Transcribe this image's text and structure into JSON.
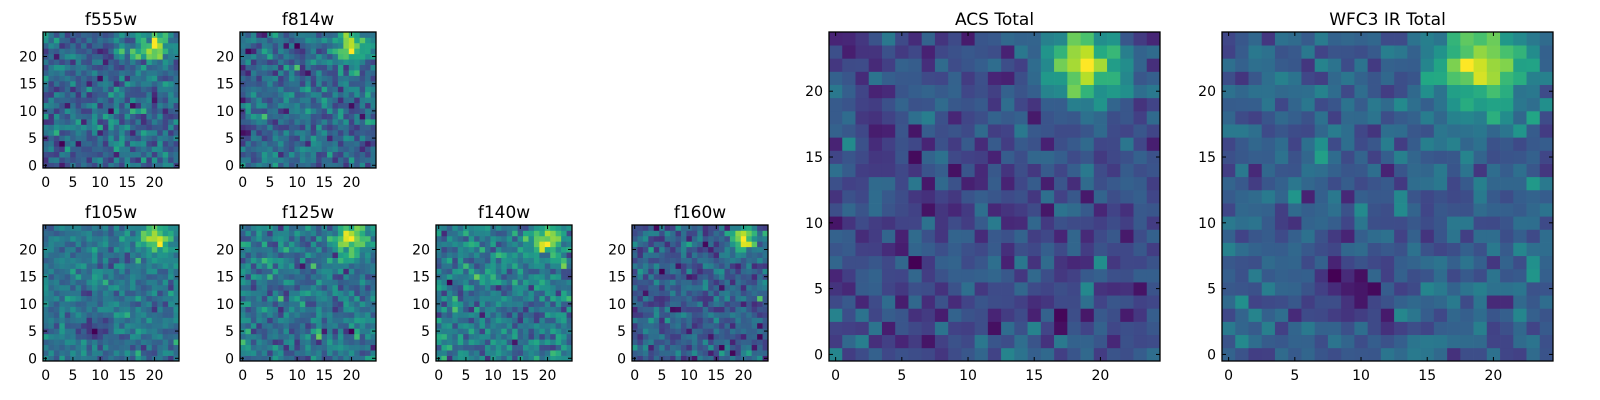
{
  "chart_data": [
    {
      "type": "heatmap",
      "title": "f555w",
      "colormap": "viridis",
      "grid_size": [
        25,
        25
      ],
      "origin": "lower",
      "xticks": [
        "0",
        "5",
        "10",
        "15",
        "20"
      ],
      "yticks": [
        "0",
        "5",
        "10",
        "15",
        "20"
      ],
      "blobs": [
        {
          "x": 20,
          "y": 22,
          "amp": 2.8,
          "sigma": 1.9
        }
      ],
      "noise": 0.55,
      "base": 0.15,
      "seed": 11
    },
    {
      "type": "heatmap",
      "title": "f814w",
      "colormap": "viridis",
      "grid_size": [
        25,
        25
      ],
      "origin": "lower",
      "xticks": [
        "0",
        "5",
        "10",
        "15",
        "20"
      ],
      "yticks": [
        "0",
        "5",
        "10",
        "15",
        "20"
      ],
      "blobs": [
        {
          "x": 20,
          "y": 22,
          "amp": 2.6,
          "sigma": 2.0
        }
      ],
      "noise": 0.55,
      "base": 0.1,
      "seed": 23
    },
    {
      "type": "heatmap",
      "title": "f105w",
      "colormap": "viridis",
      "grid_size": [
        25,
        25
      ],
      "origin": "lower",
      "xticks": [
        "0",
        "5",
        "10",
        "15",
        "20"
      ],
      "yticks": [
        "0",
        "5",
        "10",
        "15",
        "20"
      ],
      "blobs": [
        {
          "x": 20,
          "y": 22,
          "amp": 2.4,
          "sigma": 2.1
        },
        {
          "x": 9,
          "y": 5,
          "amp": -1.3,
          "sigma": 1.6
        }
      ],
      "noise": 0.45,
      "base": 0.35,
      "seed": 37
    },
    {
      "type": "heatmap",
      "title": "f125w",
      "colormap": "viridis",
      "grid_size": [
        25,
        25
      ],
      "origin": "lower",
      "xticks": [
        "0",
        "5",
        "10",
        "15",
        "20"
      ],
      "yticks": [
        "0",
        "5",
        "10",
        "15",
        "20"
      ],
      "blobs": [
        {
          "x": 20,
          "y": 22,
          "amp": 2.2,
          "sigma": 2.1
        }
      ],
      "noise": 0.5,
      "base": 0.55,
      "seed": 41
    },
    {
      "type": "heatmap",
      "title": "f140w",
      "colormap": "viridis",
      "grid_size": [
        25,
        25
      ],
      "origin": "lower",
      "xticks": [
        "0",
        "5",
        "10",
        "15",
        "20"
      ],
      "yticks": [
        "0",
        "5",
        "10",
        "15",
        "20"
      ],
      "blobs": [
        {
          "x": 20,
          "y": 22,
          "amp": 2.4,
          "sigma": 2.0
        }
      ],
      "noise": 0.5,
      "base": 0.45,
      "seed": 53
    },
    {
      "type": "heatmap",
      "title": "f160w",
      "colormap": "viridis",
      "grid_size": [
        25,
        25
      ],
      "origin": "lower",
      "xticks": [
        "0",
        "5",
        "10",
        "15",
        "20"
      ],
      "yticks": [
        "0",
        "5",
        "10",
        "15",
        "20"
      ],
      "blobs": [
        {
          "x": 20,
          "y": 22,
          "amp": 2.6,
          "sigma": 1.6
        }
      ],
      "noise": 0.4,
      "base": -0.05,
      "seed": 67
    },
    {
      "type": "heatmap",
      "title": "ACS Total",
      "colormap": "viridis",
      "grid_size": [
        25,
        25
      ],
      "origin": "lower",
      "xticks": [
        "0",
        "5",
        "10",
        "15",
        "20"
      ],
      "yticks": [
        "0",
        "5",
        "10",
        "15",
        "20"
      ],
      "blobs": [
        {
          "x": 19,
          "y": 22,
          "amp": 3.0,
          "sigma": 2.0
        }
      ],
      "noise": 0.35,
      "base": 0.1,
      "seed": 79
    },
    {
      "type": "heatmap",
      "title": "WFC3 IR Total",
      "colormap": "viridis",
      "grid_size": [
        25,
        25
      ],
      "origin": "lower",
      "xticks": [
        "0",
        "5",
        "10",
        "15",
        "20"
      ],
      "yticks": [
        "0",
        "5",
        "10",
        "15",
        "20"
      ],
      "blobs": [
        {
          "x": 19,
          "y": 22,
          "amp": 2.6,
          "sigma": 2.4
        },
        {
          "x": 9,
          "y": 5,
          "amp": -1.0,
          "sigma": 2.0
        }
      ],
      "noise": 0.35,
      "base": 0.1,
      "seed": 97
    }
  ]
}
